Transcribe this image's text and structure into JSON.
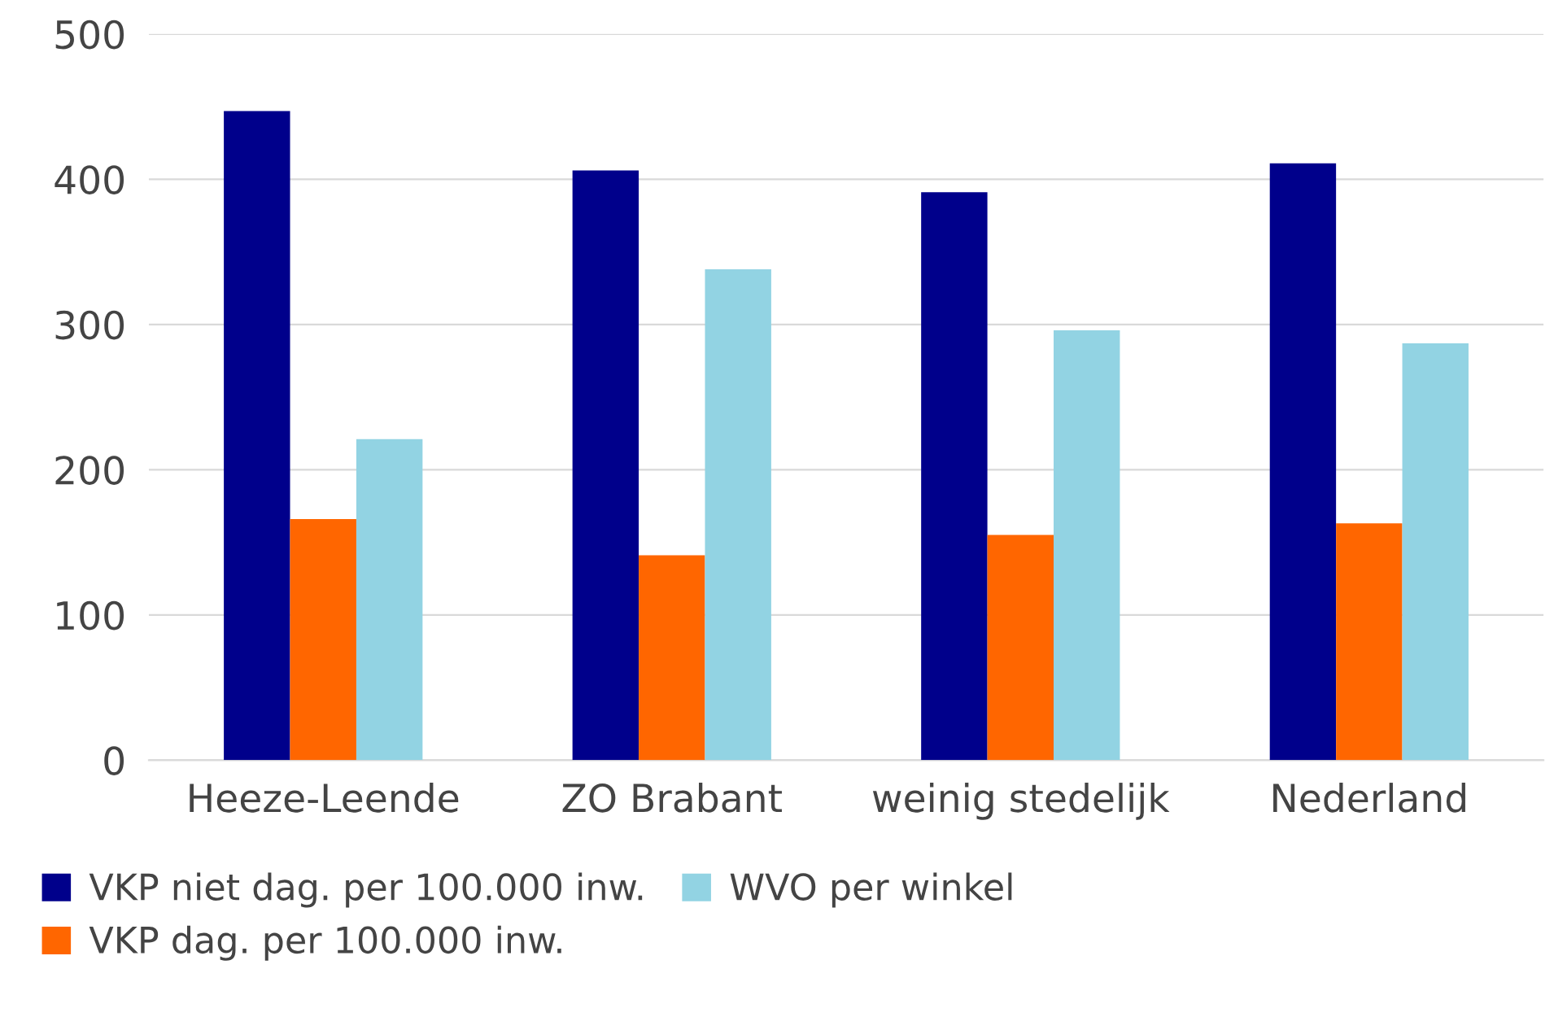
{
  "chart_data": {
    "type": "bar",
    "categories": [
      "Heeze-Leende",
      "ZO Brabant",
      "weinig stedelijk",
      "Nederland"
    ],
    "series": [
      {
        "name": "VKP niet dag. per 100.000 inw.",
        "color": "#00008b",
        "values": [
          447,
          406,
          391,
          411
        ]
      },
      {
        "name": "VKP dag. per 100.000 inw.",
        "color": "#ff6600",
        "values": [
          166,
          141,
          155,
          163
        ]
      },
      {
        "name": "WVO per winkel",
        "color": "#92d3e3",
        "values": [
          221,
          338,
          296,
          287
        ]
      }
    ],
    "ylim": [
      0,
      500
    ],
    "yticks": [
      0,
      100,
      200,
      300,
      400,
      500
    ],
    "grid": "y",
    "legend": "bottom"
  }
}
